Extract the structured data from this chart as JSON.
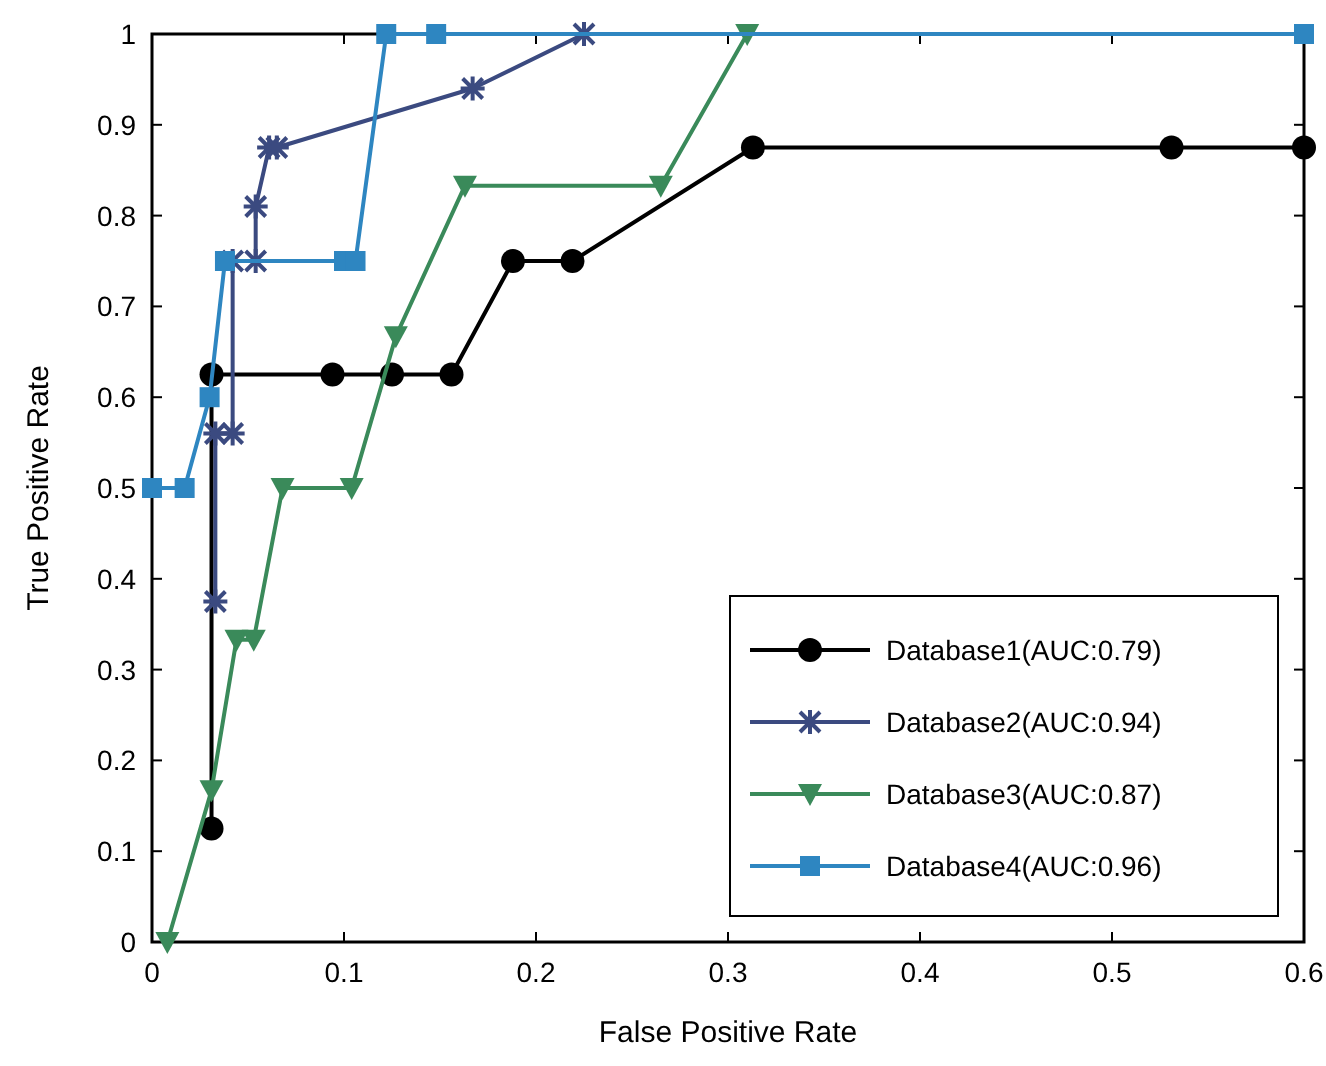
{
  "chart_data": {
    "type": "line",
    "xlabel": "False Positive Rate",
    "ylabel": "True Positive Rate",
    "xlim": [
      0,
      0.6
    ],
    "ylim": [
      0,
      1
    ],
    "xticks": [
      0,
      0.1,
      0.2,
      0.3,
      0.4,
      0.5,
      0.6
    ],
    "yticks": [
      0,
      0.1,
      0.2,
      0.3,
      0.4,
      0.5,
      0.6,
      0.7,
      0.8,
      0.9,
      1
    ],
    "grid": false,
    "legend": "bottom right",
    "line_style": "solid",
    "series": [
      {
        "name": "Database1(AUC:0.79)",
        "color": "#000000",
        "marker": "circle",
        "x": [
          0.031,
          0.031,
          0.094,
          0.125,
          0.156,
          0.188,
          0.219,
          0.313,
          0.531,
          0.6
        ],
        "values": [
          0.125,
          0.625,
          0.625,
          0.625,
          0.625,
          0.75,
          0.75,
          0.875,
          0.875,
          0.875
        ]
      },
      {
        "name": "Database2(AUC:0.94)",
        "color": "#3b4a80",
        "marker": "cross",
        "x": [
          0.033,
          0.033,
          0.042,
          0.042,
          0.054,
          0.054,
          0.061,
          0.065,
          0.167,
          0.225
        ],
        "values": [
          0.375,
          0.56,
          0.56,
          0.75,
          0.75,
          0.81,
          0.875,
          0.875,
          0.94,
          1
        ]
      },
      {
        "name": "Database3(AUC:0.87)",
        "color": "#3a8a5a",
        "marker": "triangle",
        "x": [
          0.008,
          0.031,
          0.044,
          0.053,
          0.068,
          0.104,
          0.127,
          0.163,
          0.265,
          0.31
        ],
        "values": [
          0,
          0.167,
          0.333,
          0.333,
          0.5,
          0.5,
          0.667,
          0.833,
          0.833,
          1
        ]
      },
      {
        "name": "Database4(AUC:0.96)",
        "color": "#2e86c1",
        "marker": "square",
        "x": [
          0,
          0.017,
          0.03,
          0.038,
          0.1,
          0.106,
          0.122,
          0.148,
          0.6
        ],
        "values": [
          0.5,
          0.5,
          0.6,
          0.75,
          0.75,
          0.75,
          1,
          1,
          1
        ]
      }
    ]
  }
}
